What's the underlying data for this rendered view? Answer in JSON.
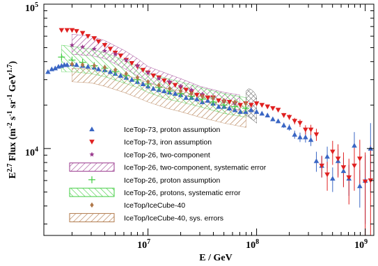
{
  "chart_data": {
    "type": "scatter",
    "xlabel": "E / GeV",
    "ylabel_main": "E",
    "ylabel_exp": "2.7",
    "ylabel_rest": " Flux (m",
    "ylabel_units": [
      "-2",
      "s",
      "-1",
      "sr",
      "-1",
      "GeV",
      "1.7"
    ],
    "xscale": "log",
    "yscale": "log",
    "xlim": [
      1100000.0,
      1200000000.0
    ],
    "ylim": [
      2500,
      100000
    ],
    "grid": false,
    "legend_placement": "lower-left",
    "x_ticks": [
      {
        "value": 10000000.0,
        "base": "10",
        "exp": "7"
      },
      {
        "value": 100000000.0,
        "base": "10",
        "exp": "8"
      },
      {
        "value": 1000000000.0,
        "base": "10",
        "exp": "9"
      }
    ],
    "y_ticks": [
      {
        "value": 10000,
        "base": "10",
        "exp": "4"
      },
      {
        "value": 100000,
        "base": "10",
        "exp": "5"
      }
    ],
    "series": [
      {
        "name": "IceTop-73, proton assumption",
        "color": "#3a66c4",
        "marker": "triangle-up",
        "x": [
          1200000.0,
          1300000.0,
          1400000.0,
          1500000.0,
          1600000.0,
          1700000.0,
          1800000.0,
          2000000.0,
          2200000.0,
          2500000.0,
          2800000.0,
          3200000.0,
          3500000.0,
          4000000.0,
          4500000.0,
          5000000.0,
          5600000.0,
          6300000.0,
          7100000.0,
          8000000.0,
          9000000.0,
          10000000.0,
          11200000.0,
          12600000.0,
          14100000.0,
          15800000.0,
          17800000.0,
          20000000.0,
          22400000.0,
          25100000.0,
          28200000.0,
          31600000.0,
          35500000.0,
          39800000.0,
          44700000.0,
          50100000.0,
          56200000.0,
          63100000.0,
          70800000.0,
          79400000.0,
          89100000.0,
          100000000.0,
          112000000.0,
          126000000.0,
          141000000.0,
          158000000.0,
          178000000.0,
          200000000.0,
          224000000.0,
          251000000.0,
          282000000.0,
          316000000.0,
          355000000.0,
          398000000.0,
          447000000.0,
          501000000.0,
          562000000.0,
          631000000.0,
          708000000.0,
          794000000.0,
          891000000.0,
          1000000000.0,
          1120000000.0
        ],
        "y": [
          34000,
          35500,
          36000,
          37000,
          37500,
          38000,
          38000,
          38500,
          38000,
          37500,
          37000,
          36500,
          35500,
          35000,
          34000,
          33000,
          32000,
          31000,
          30000,
          29000,
          28000,
          27000,
          26000,
          25500,
          25000,
          24500,
          24000,
          23500,
          22500,
          22500,
          22000,
          21000,
          21500,
          20500,
          19500,
          19500,
          19000,
          18500,
          18000,
          18000,
          18500,
          18000,
          17500,
          17000,
          16000,
          15500,
          14500,
          14000,
          12500,
          12000,
          12000,
          11500,
          8200,
          7600,
          8800,
          6200,
          8200,
          7000,
          6200,
          10500,
          5500,
          6000,
          10000
        ],
        "yerr": [
          0,
          0,
          0,
          0,
          0,
          0,
          0,
          0,
          0,
          0,
          0,
          0,
          0,
          0,
          0,
          0,
          0,
          0,
          0,
          0,
          0,
          0,
          0,
          0,
          0,
          0,
          0,
          0,
          0,
          0,
          0,
          0,
          0,
          0,
          0,
          0,
          0,
          0,
          0,
          0,
          0,
          0,
          0,
          0,
          500,
          500,
          600,
          700,
          800,
          900,
          1000,
          1100,
          1300,
          1300,
          1500,
          1200,
          1700,
          1600,
          1500,
          2500,
          1600,
          3000,
          5000
        ]
      },
      {
        "name": "IceTop-73, iron assumption",
        "color": "#e02020",
        "marker": "triangle-down",
        "x": [
          1600000.0,
          1800000.0,
          2000000.0,
          2200000.0,
          2500000.0,
          2800000.0,
          3200000.0,
          3500000.0,
          4000000.0,
          4500000.0,
          5000000.0,
          5600000.0,
          6300000.0,
          7100000.0,
          8000000.0,
          9000000.0,
          10000000.0,
          11200000.0,
          12600000.0,
          14100000.0,
          15800000.0,
          17800000.0,
          20000000.0,
          22400000.0,
          25100000.0,
          28200000.0,
          31600000.0,
          35500000.0,
          39800000.0,
          44700000.0,
          50100000.0,
          56200000.0,
          63100000.0,
          70800000.0,
          79400000.0,
          89100000.0,
          100000000.0,
          112000000.0,
          126000000.0,
          141000000.0,
          158000000.0,
          178000000.0,
          200000000.0,
          224000000.0,
          251000000.0,
          282000000.0,
          316000000.0,
          355000000.0,
          398000000.0,
          447000000.0,
          501000000.0,
          562000000.0,
          631000000.0,
          708000000.0,
          794000000.0,
          891000000.0,
          1000000000.0,
          1120000000.0
        ],
        "y": [
          66000,
          66000,
          66000,
          65000,
          63000,
          60000,
          58000,
          55000,
          52000,
          49000,
          46000,
          44000,
          41000,
          39000,
          37000,
          35000,
          33500,
          32000,
          31000,
          29500,
          28500,
          27500,
          26500,
          25500,
          24500,
          23500,
          23000,
          22500,
          22500,
          21500,
          21000,
          21000,
          20500,
          20000,
          20500,
          20000,
          20500,
          20000,
          19500,
          19000,
          18500,
          17000,
          16500,
          15500,
          15000,
          13500,
          13500,
          12500,
          7600,
          6600,
          9500,
          8500,
          7400,
          6300,
          7600,
          8500,
          5900,
          6000
        ],
        "yerr": [
          0,
          0,
          0,
          0,
          0,
          0,
          0,
          0,
          0,
          0,
          0,
          0,
          0,
          0,
          0,
          0,
          0,
          0,
          0,
          0,
          0,
          0,
          0,
          0,
          0,
          0,
          0,
          0,
          0,
          0,
          0,
          0,
          0,
          0,
          0,
          0,
          0,
          0,
          0,
          0,
          500,
          600,
          700,
          800,
          900,
          1000,
          1100,
          1200,
          1300,
          1500,
          1800,
          2200,
          2000,
          2200,
          2500,
          3000,
          3500,
          4500
        ]
      },
      {
        "name": "IceTop-26, two-component",
        "color": "#9a3a8e",
        "marker": "star",
        "x": [
          2000000.0,
          2500000.0,
          3200000.0,
          4000000.0,
          5000000.0,
          6300000.0,
          8000000.0,
          10000000.0,
          12600000.0,
          15800000.0,
          20000000.0,
          25100000.0,
          31600000.0,
          39800000.0,
          50100000.0,
          63100000.0
        ],
        "y": [
          52000,
          50500,
          49000,
          47500,
          45000,
          41000,
          37500,
          33500,
          30500,
          29000,
          27000,
          25500,
          23800,
          22500,
          21500,
          20500
        ],
        "yerr": []
      },
      {
        "name": "IceTop-26, two-component, systematic error",
        "color": "#9a3a8e",
        "marker": "hatch-band",
        "x": [
          2000000.0,
          3000000.0,
          4000000.0,
          6000000.0,
          8000000.0,
          10000000.0,
          15000000.0,
          20000000.0,
          30000000.0,
          50000000.0,
          70000000.0
        ],
        "y_low": [
          45000,
          44000,
          42000,
          36000,
          32000,
          29000,
          26000,
          24000,
          21500,
          19500,
          18500
        ],
        "y_high": [
          62000,
          60000,
          56000,
          48000,
          42000,
          37000,
          33000,
          30500,
          27000,
          24500,
          23500
        ],
        "yerr": []
      },
      {
        "name": "IceTop-26, proton assumption",
        "color": "#3fcc3f",
        "marker": "cross",
        "x": [
          1600000.0,
          2000000.0,
          2500000.0,
          3200000.0,
          4000000.0,
          5000000.0,
          6300000.0,
          8000000.0,
          10000000.0,
          12600000.0,
          15800000.0,
          20000000.0,
          25100000.0,
          31600000.0,
          39800000.0,
          50100000.0,
          63100000.0,
          79400000.0
        ],
        "y": [
          43000,
          41000,
          39500,
          37500,
          36000,
          34000,
          32000,
          30000,
          28000,
          26500,
          25000,
          24000,
          23000,
          22000,
          21000,
          20000,
          19500,
          19000
        ],
        "yerr": []
      },
      {
        "name": "IceTop-26, protons, systematic error",
        "color": "#3fcc3f",
        "marker": "hatch-band",
        "x": [
          1600000.0,
          2000000.0,
          3000000.0,
          4000000.0,
          6000000.0,
          8000000.0,
          10000000.0,
          15000000.0,
          20000000.0,
          30000000.0,
          50000000.0,
          80000000.0
        ],
        "y_low": [
          34000,
          34000,
          33000,
          31500,
          28500,
          26500,
          24500,
          22000,
          21000,
          19500,
          17500,
          16500
        ],
        "y_high": [
          52000,
          51000,
          49000,
          46000,
          41000,
          37000,
          33500,
          30500,
          29000,
          26500,
          24000,
          22500
        ],
        "yerr": []
      },
      {
        "name": "IceTop/IceCube-40",
        "color": "#b0784a",
        "marker": "diamond",
        "x": [
          2000000.0,
          2500000.0,
          3200000.0,
          4000000.0,
          5000000.0,
          6300000.0,
          8000000.0,
          10000000.0,
          12600000.0,
          15800000.0,
          20000000.0,
          25100000.0,
          31600000.0,
          39800000.0,
          50100000.0,
          63100000.0,
          79400000.0
        ],
        "y": [
          38500,
          38000,
          37500,
          36500,
          35000,
          33000,
          31000,
          29000,
          27500,
          26000,
          25000,
          24000,
          23000,
          22500,
          21500,
          21000,
          20500
        ],
        "yerr": []
      },
      {
        "name": "IceTop/IceCube-40, sys. errors",
        "color": "#b0784a",
        "marker": "hatch-band",
        "x": [
          2000000.0,
          3000000.0,
          4000000.0,
          6000000.0,
          8000000.0,
          10000000.0,
          15000000.0,
          20000000.0,
          30000000.0,
          50000000.0,
          80000000.0
        ],
        "y_low": [
          29000,
          28500,
          27000,
          24500,
          22500,
          21000,
          19000,
          18000,
          16500,
          15000,
          14000
        ],
        "y_high": [
          36000,
          35500,
          35000,
          32500,
          30500,
          28500,
          26000,
          25000,
          23000,
          21000,
          19500
        ],
        "yerr": []
      },
      {
        "name": "",
        "color": "#555555",
        "marker": "hatch-band",
        "x": [
          80000000.0,
          85000000.0,
          90000000.0,
          95000000.0,
          100000000.0
        ],
        "y_low": [
          17000,
          16500,
          16000,
          15500,
          15000
        ],
        "y_high": [
          25000,
          26000,
          25500,
          24500,
          23000
        ],
        "yerr": []
      }
    ]
  }
}
